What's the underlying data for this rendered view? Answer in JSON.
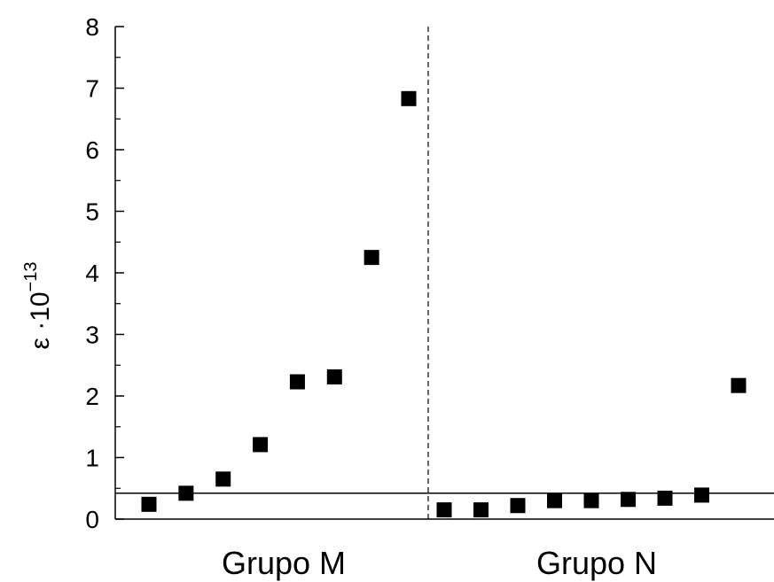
{
  "chart_data": {
    "type": "scatter",
    "title": "",
    "ylabel": {
      "base": "ε ·10",
      "exponent": "−13"
    },
    "ylim": [
      0,
      8
    ],
    "y_ticks": [
      "0",
      "1",
      "2",
      "3",
      "4",
      "5",
      "6",
      "7",
      "8"
    ],
    "groups": [
      "Grupo M",
      "Grupo N"
    ],
    "series": [
      {
        "group": "Grupo M",
        "values": [
          0.24,
          0.42,
          0.65,
          1.21,
          2.23,
          2.31,
          4.25,
          6.83
        ]
      },
      {
        "group": "Grupo N",
        "values": [
          0.15,
          0.15,
          0.22,
          0.3,
          0.3,
          0.32,
          0.34,
          0.39,
          2.17
        ]
      }
    ],
    "reference_line": 0.42,
    "marker": "filled-square",
    "color": "#000000"
  }
}
